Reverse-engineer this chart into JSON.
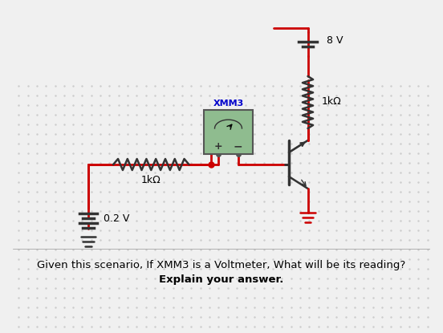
{
  "bg_color": "#f0f0f0",
  "dot_color": "#cccccc",
  "circuit_color": "#cc0000",
  "text_color": "#000000",
  "label_color": "#0000cc",
  "title_text": "Given this scenario, If XMM3 is a Voltmeter, What will be its reading?\nExplain your answer.",
  "voltmeter_label": "XMM3",
  "resistor_left_label": "1kΩ",
  "resistor_right_label": "1kΩ",
  "battery_left_label": "0.2 V",
  "battery_right_label": "8 V",
  "voltmeter_bg": "#8fbc8f",
  "voltmeter_border": "#555555",
  "resistor_color": "#333333"
}
